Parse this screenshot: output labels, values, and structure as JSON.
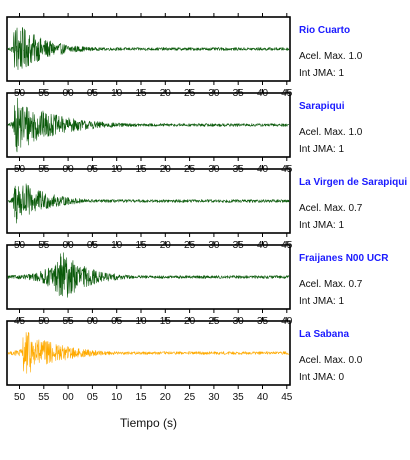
{
  "chart_data": {
    "type": "line",
    "xlabel": "Tiempo (s)",
    "panels": [
      {
        "station": "Rio Cuarto",
        "max_accel_text": "Acel. Max. 1.0",
        "jma_text": "Int JMA: 1",
        "color": "#0a5a0a",
        "tick_labels": [
          "50",
          "55",
          "00",
          "05",
          "10",
          "15",
          "20",
          "25",
          "30",
          "35",
          "40",
          "45"
        ],
        "event_onset": 0.02,
        "peak_amplitude": 1.0,
        "decay": 0.1
      },
      {
        "station": "Sarapiqui",
        "max_accel_text": "Acel. Max. 1.0",
        "jma_text": "Int JMA: 1",
        "color": "#0a5a0a",
        "tick_labels": [
          "50",
          "55",
          "00",
          "05",
          "10",
          "15",
          "20",
          "25",
          "30",
          "35",
          "40",
          "45"
        ],
        "event_onset": 0.02,
        "peak_amplitude": 1.0,
        "decay": 0.14
      },
      {
        "station": "La Virgen de Sarapiqui",
        "max_accel_text": "Acel. Max. 0.7",
        "jma_text": "Int JMA: 1",
        "color": "#0a5a0a",
        "tick_labels": [
          "50",
          "55",
          "00",
          "05",
          "10",
          "15",
          "20",
          "25",
          "30",
          "35",
          "40",
          "45"
        ],
        "event_onset": 0.02,
        "peak_amplitude": 0.9,
        "decay": 0.1
      },
      {
        "station": "Fraijanes N00 UCR",
        "max_accel_text": "Acel. Max. 0.7",
        "jma_text": "Int JMA: 1",
        "color": "#0a5a0a",
        "tick_labels": [
          "45",
          "50",
          "55",
          "00",
          "05",
          "10",
          "15",
          "20",
          "25",
          "30",
          "35",
          "40"
        ],
        "event_onset": 0.18,
        "peak_amplitude": 1.0,
        "decay": 0.09
      },
      {
        "station": "La Sabana",
        "max_accel_text": "Acel. Max. 0.0",
        "jma_text": "Int JMA: 0",
        "color": "#ffaa00",
        "tick_labels": [
          "50",
          "55",
          "00",
          "05",
          "10",
          "15",
          "20",
          "25",
          "30",
          "35",
          "40",
          "45"
        ],
        "event_onset": 0.05,
        "peak_amplitude": 0.85,
        "decay": 0.12
      }
    ]
  }
}
